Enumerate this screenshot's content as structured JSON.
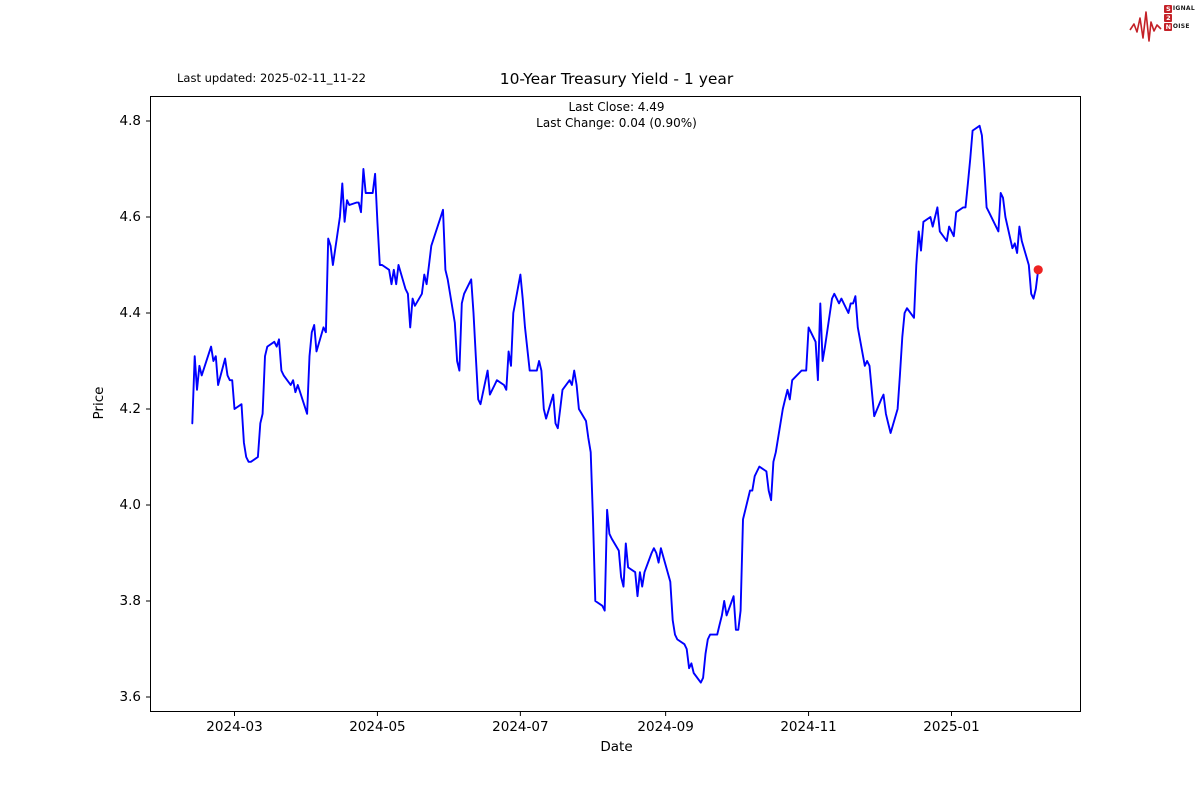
{
  "header": {
    "title": "10-Year Treasury Yield - 1 year",
    "last_updated": "Last updated: 2025-02-11_11-22"
  },
  "subtitle": {
    "line1": "Last Close: 4.49",
    "line2": "Last Change: 0.04 (0.90%)"
  },
  "logo": {
    "rows": [
      {
        "boxed": "S",
        "rest": "IGNAL"
      },
      {
        "boxed": "2",
        "rest": ""
      },
      {
        "boxed": "N",
        "rest": "OISE"
      }
    ],
    "color": "#c42127"
  },
  "chart_data": {
    "type": "line",
    "title": "10-Year Treasury Yield - 1 year",
    "xlabel": "Date",
    "ylabel": "Price",
    "last_close": 4.49,
    "last_change": "0.04 (0.90%)",
    "grid": false,
    "ylim_ticks": [
      3.6,
      4.8
    ],
    "line_color": "#0000ff",
    "marker_color": "#ee2222",
    "y_ticks": [
      {
        "label": "4.8",
        "value": 4.8
      },
      {
        "label": "4.6",
        "value": 4.6
      },
      {
        "label": "4.4",
        "value": 4.4
      },
      {
        "label": "4.2",
        "value": 4.2
      },
      {
        "label": "4.0",
        "value": 4.0
      },
      {
        "label": "3.8",
        "value": 3.8
      },
      {
        "label": "3.6",
        "value": 3.6
      }
    ],
    "x_ticks": [
      {
        "label": "2024-03",
        "date": "2024-03-01"
      },
      {
        "label": "2024-05",
        "date": "2024-05-01"
      },
      {
        "label": "2024-07",
        "date": "2024-07-01"
      },
      {
        "label": "2024-09",
        "date": "2024-09-01"
      },
      {
        "label": "2024-11",
        "date": "2024-11-01"
      },
      {
        "label": "2025-01",
        "date": "2025-01-01"
      }
    ],
    "series": [
      {
        "name": "10-Year Treasury Yield",
        "points": [
          [
            "2024-02-12",
            4.17
          ],
          [
            "2024-02-13",
            4.31
          ],
          [
            "2024-02-14",
            4.24
          ],
          [
            "2024-02-15",
            4.29
          ],
          [
            "2024-02-16",
            4.27
          ],
          [
            "2024-02-20",
            4.33
          ],
          [
            "2024-02-21",
            4.3
          ],
          [
            "2024-02-22",
            4.31
          ],
          [
            "2024-02-23",
            4.25
          ],
          [
            "2024-02-26",
            4.305
          ],
          [
            "2024-02-27",
            4.27
          ],
          [
            "2024-02-28",
            4.26
          ],
          [
            "2024-02-29",
            4.26
          ],
          [
            "2024-03-01",
            4.2
          ],
          [
            "2024-03-04",
            4.21
          ],
          [
            "2024-03-05",
            4.13
          ],
          [
            "2024-03-06",
            4.1
          ],
          [
            "2024-03-07",
            4.09
          ],
          [
            "2024-03-08",
            4.09
          ],
          [
            "2024-03-11",
            4.1
          ],
          [
            "2024-03-12",
            4.17
          ],
          [
            "2024-03-13",
            4.19
          ],
          [
            "2024-03-14",
            4.31
          ],
          [
            "2024-03-15",
            4.33
          ],
          [
            "2024-03-18",
            4.34
          ],
          [
            "2024-03-19",
            4.33
          ],
          [
            "2024-03-20",
            4.345
          ],
          [
            "2024-03-21",
            4.28
          ],
          [
            "2024-03-22",
            4.27
          ],
          [
            "2024-03-25",
            4.25
          ],
          [
            "2024-03-26",
            4.26
          ],
          [
            "2024-03-27",
            4.235
          ],
          [
            "2024-03-28",
            4.25
          ],
          [
            "2024-04-01",
            4.19
          ],
          [
            "2024-04-02",
            4.31
          ],
          [
            "2024-04-03",
            4.36
          ],
          [
            "2024-04-04",
            4.375
          ],
          [
            "2024-04-05",
            4.32
          ],
          [
            "2024-04-08",
            4.37
          ],
          [
            "2024-04-09",
            4.36
          ],
          [
            "2024-04-10",
            4.555
          ],
          [
            "2024-04-11",
            4.54
          ],
          [
            "2024-04-12",
            4.5
          ],
          [
            "2024-04-15",
            4.6
          ],
          [
            "2024-04-16",
            4.67
          ],
          [
            "2024-04-17",
            4.59
          ],
          [
            "2024-04-18",
            4.635
          ],
          [
            "2024-04-19",
            4.625
          ],
          [
            "2024-04-22",
            4.63
          ],
          [
            "2024-04-23",
            4.63
          ],
          [
            "2024-04-24",
            4.61
          ],
          [
            "2024-04-25",
            4.7
          ],
          [
            "2024-04-26",
            4.65
          ],
          [
            "2024-04-29",
            4.65
          ],
          [
            "2024-04-30",
            4.69
          ],
          [
            "2024-05-01",
            4.59
          ],
          [
            "2024-05-02",
            4.5
          ],
          [
            "2024-05-03",
            4.5
          ],
          [
            "2024-05-06",
            4.49
          ],
          [
            "2024-05-07",
            4.46
          ],
          [
            "2024-05-08",
            4.49
          ],
          [
            "2024-05-09",
            4.46
          ],
          [
            "2024-05-10",
            4.5
          ],
          [
            "2024-05-13",
            4.45
          ],
          [
            "2024-05-14",
            4.44
          ],
          [
            "2024-05-15",
            4.37
          ],
          [
            "2024-05-16",
            4.43
          ],
          [
            "2024-05-17",
            4.415
          ],
          [
            "2024-05-20",
            4.44
          ],
          [
            "2024-05-21",
            4.48
          ],
          [
            "2024-05-22",
            4.46
          ],
          [
            "2024-05-23",
            4.5
          ],
          [
            "2024-05-24",
            4.54
          ],
          [
            "2024-05-28",
            4.6
          ],
          [
            "2024-05-29",
            4.615
          ],
          [
            "2024-05-30",
            4.49
          ],
          [
            "2024-05-31",
            4.47
          ],
          [
            "2024-06-03",
            4.38
          ],
          [
            "2024-06-04",
            4.3
          ],
          [
            "2024-06-05",
            4.28
          ],
          [
            "2024-06-06",
            4.42
          ],
          [
            "2024-06-07",
            4.44
          ],
          [
            "2024-06-10",
            4.47
          ],
          [
            "2024-06-11",
            4.4
          ],
          [
            "2024-06-12",
            4.31
          ],
          [
            "2024-06-13",
            4.22
          ],
          [
            "2024-06-14",
            4.21
          ],
          [
            "2024-06-17",
            4.28
          ],
          [
            "2024-06-18",
            4.23
          ],
          [
            "2024-06-20",
            4.25
          ],
          [
            "2024-06-21",
            4.26
          ],
          [
            "2024-06-24",
            4.25
          ],
          [
            "2024-06-25",
            4.24
          ],
          [
            "2024-06-26",
            4.32
          ],
          [
            "2024-06-27",
            4.29
          ],
          [
            "2024-06-28",
            4.4
          ],
          [
            "2024-07-01",
            4.48
          ],
          [
            "2024-07-02",
            4.43
          ],
          [
            "2024-07-03",
            4.37
          ],
          [
            "2024-07-05",
            4.28
          ],
          [
            "2024-07-08",
            4.28
          ],
          [
            "2024-07-09",
            4.3
          ],
          [
            "2024-07-10",
            4.28
          ],
          [
            "2024-07-11",
            4.2
          ],
          [
            "2024-07-12",
            4.18
          ],
          [
            "2024-07-15",
            4.23
          ],
          [
            "2024-07-16",
            4.17
          ],
          [
            "2024-07-17",
            4.16
          ],
          [
            "2024-07-18",
            4.2
          ],
          [
            "2024-07-19",
            4.24
          ],
          [
            "2024-07-22",
            4.26
          ],
          [
            "2024-07-23",
            4.25
          ],
          [
            "2024-07-24",
            4.28
          ],
          [
            "2024-07-25",
            4.25
          ],
          [
            "2024-07-26",
            4.2
          ],
          [
            "2024-07-29",
            4.175
          ],
          [
            "2024-07-30",
            4.14
          ],
          [
            "2024-07-31",
            4.11
          ],
          [
            "2024-08-01",
            3.97
          ],
          [
            "2024-08-02",
            3.8
          ],
          [
            "2024-08-05",
            3.79
          ],
          [
            "2024-08-06",
            3.78
          ],
          [
            "2024-08-07",
            3.99
          ],
          [
            "2024-08-08",
            3.94
          ],
          [
            "2024-08-09",
            3.93
          ],
          [
            "2024-08-12",
            3.905
          ],
          [
            "2024-08-13",
            3.85
          ],
          [
            "2024-08-14",
            3.83
          ],
          [
            "2024-08-15",
            3.92
          ],
          [
            "2024-08-16",
            3.87
          ],
          [
            "2024-08-19",
            3.86
          ],
          [
            "2024-08-20",
            3.81
          ],
          [
            "2024-08-21",
            3.86
          ],
          [
            "2024-08-22",
            3.83
          ],
          [
            "2024-08-23",
            3.86
          ],
          [
            "2024-08-26",
            3.9
          ],
          [
            "2024-08-27",
            3.91
          ],
          [
            "2024-08-28",
            3.9
          ],
          [
            "2024-08-29",
            3.88
          ],
          [
            "2024-08-30",
            3.91
          ],
          [
            "2024-09-03",
            3.84
          ],
          [
            "2024-09-04",
            3.76
          ],
          [
            "2024-09-05",
            3.73
          ],
          [
            "2024-09-06",
            3.72
          ],
          [
            "2024-09-09",
            3.71
          ],
          [
            "2024-09-10",
            3.7
          ],
          [
            "2024-09-11",
            3.66
          ],
          [
            "2024-09-12",
            3.67
          ],
          [
            "2024-09-13",
            3.65
          ],
          [
            "2024-09-16",
            3.63
          ],
          [
            "2024-09-17",
            3.64
          ],
          [
            "2024-09-18",
            3.69
          ],
          [
            "2024-09-19",
            3.72
          ],
          [
            "2024-09-20",
            3.73
          ],
          [
            "2024-09-23",
            3.73
          ],
          [
            "2024-09-24",
            3.75
          ],
          [
            "2024-09-25",
            3.77
          ],
          [
            "2024-09-26",
            3.8
          ],
          [
            "2024-09-27",
            3.77
          ],
          [
            "2024-09-30",
            3.81
          ],
          [
            "2024-10-01",
            3.74
          ],
          [
            "2024-10-02",
            3.74
          ],
          [
            "2024-10-03",
            3.78
          ],
          [
            "2024-10-04",
            3.97
          ],
          [
            "2024-10-07",
            4.03
          ],
          [
            "2024-10-08",
            4.03
          ],
          [
            "2024-10-09",
            4.06
          ],
          [
            "2024-10-10",
            4.07
          ],
          [
            "2024-10-11",
            4.08
          ],
          [
            "2024-10-14",
            4.07
          ],
          [
            "2024-10-15",
            4.03
          ],
          [
            "2024-10-16",
            4.01
          ],
          [
            "2024-10-17",
            4.09
          ],
          [
            "2024-10-18",
            4.11
          ],
          [
            "2024-10-21",
            4.2
          ],
          [
            "2024-10-22",
            4.22
          ],
          [
            "2024-10-23",
            4.24
          ],
          [
            "2024-10-24",
            4.22
          ],
          [
            "2024-10-25",
            4.26
          ],
          [
            "2024-10-28",
            4.275
          ],
          [
            "2024-10-29",
            4.28
          ],
          [
            "2024-10-30",
            4.28
          ],
          [
            "2024-10-31",
            4.28
          ],
          [
            "2024-11-01",
            4.37
          ],
          [
            "2024-11-04",
            4.34
          ],
          [
            "2024-11-05",
            4.26
          ],
          [
            "2024-11-06",
            4.42
          ],
          [
            "2024-11-07",
            4.3
          ],
          [
            "2024-11-08",
            4.33
          ],
          [
            "2024-11-11",
            4.43
          ],
          [
            "2024-11-12",
            4.44
          ],
          [
            "2024-11-13",
            4.43
          ],
          [
            "2024-11-14",
            4.42
          ],
          [
            "2024-11-15",
            4.43
          ],
          [
            "2024-11-18",
            4.4
          ],
          [
            "2024-11-19",
            4.42
          ],
          [
            "2024-11-20",
            4.42
          ],
          [
            "2024-11-21",
            4.435
          ],
          [
            "2024-11-22",
            4.37
          ],
          [
            "2024-11-25",
            4.29
          ],
          [
            "2024-11-26",
            4.3
          ],
          [
            "2024-11-27",
            4.29
          ],
          [
            "2024-11-29",
            4.185
          ],
          [
            "2024-12-02",
            4.22
          ],
          [
            "2024-12-03",
            4.23
          ],
          [
            "2024-12-04",
            4.19
          ],
          [
            "2024-12-05",
            4.17
          ],
          [
            "2024-12-06",
            4.15
          ],
          [
            "2024-12-09",
            4.2
          ],
          [
            "2024-12-10",
            4.27
          ],
          [
            "2024-12-11",
            4.35
          ],
          [
            "2024-12-12",
            4.4
          ],
          [
            "2024-12-13",
            4.41
          ],
          [
            "2024-12-16",
            4.39
          ],
          [
            "2024-12-17",
            4.5
          ],
          [
            "2024-12-18",
            4.57
          ],
          [
            "2024-12-19",
            4.53
          ],
          [
            "2024-12-20",
            4.59
          ],
          [
            "2024-12-23",
            4.6
          ],
          [
            "2024-12-24",
            4.58
          ],
          [
            "2024-12-26",
            4.62
          ],
          [
            "2024-12-27",
            4.57
          ],
          [
            "2024-12-30",
            4.55
          ],
          [
            "2024-12-31",
            4.58
          ],
          [
            "2025-01-02",
            4.56
          ],
          [
            "2025-01-03",
            4.61
          ],
          [
            "2025-01-06",
            4.62
          ],
          [
            "2025-01-07",
            4.62
          ],
          [
            "2025-01-08",
            4.67
          ],
          [
            "2025-01-09",
            4.72
          ],
          [
            "2025-01-10",
            4.78
          ],
          [
            "2025-01-13",
            4.79
          ],
          [
            "2025-01-14",
            4.77
          ],
          [
            "2025-01-15",
            4.7
          ],
          [
            "2025-01-16",
            4.62
          ],
          [
            "2025-01-17",
            4.61
          ],
          [
            "2025-01-21",
            4.57
          ],
          [
            "2025-01-22",
            4.65
          ],
          [
            "2025-01-23",
            4.64
          ],
          [
            "2025-01-24",
            4.6
          ],
          [
            "2025-01-27",
            4.535
          ],
          [
            "2025-01-28",
            4.545
          ],
          [
            "2025-01-29",
            4.525
          ],
          [
            "2025-01-30",
            4.58
          ],
          [
            "2025-01-31",
            4.55
          ],
          [
            "2025-02-03",
            4.5
          ],
          [
            "2025-02-04",
            4.44
          ],
          [
            "2025-02-05",
            4.43
          ],
          [
            "2025-02-06",
            4.45
          ],
          [
            "2025-02-07",
            4.49
          ]
        ]
      }
    ]
  }
}
